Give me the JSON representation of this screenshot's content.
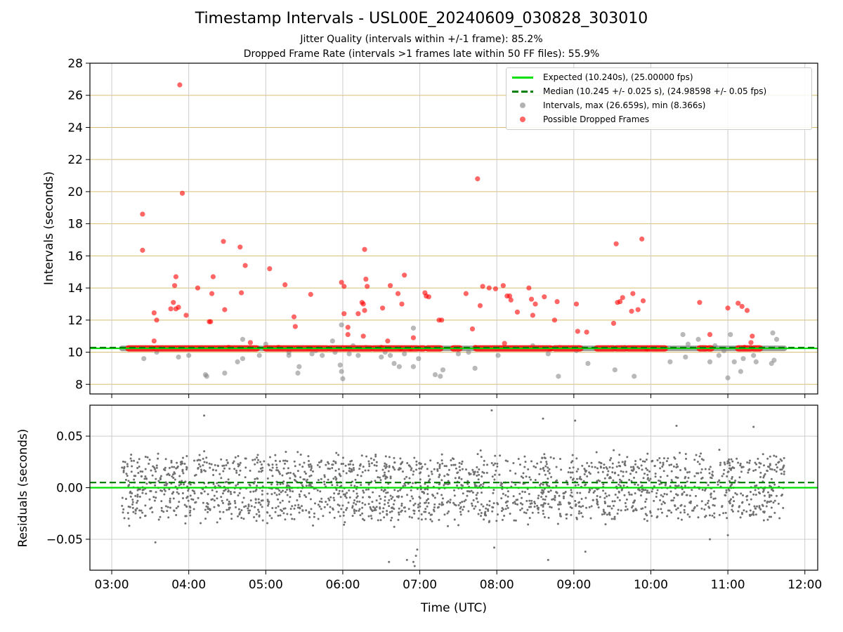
{
  "figure": {
    "title": "Timestamp Intervals - USL00E_20240609_030828_303010",
    "subtitle_1": "Jitter Quality (intervals within +/-1 frame): 85.2%",
    "subtitle_2": "Dropped Frame Rate (intervals >1 frames late within 50 FF files): 55.9%"
  },
  "colors": {
    "expected_line": "#00e000",
    "median_line": "#008000",
    "interval_points": "#909090",
    "dropped_points": "#ff2020",
    "top_grid": "#d8bf70",
    "vertical_grid": "#cccccc",
    "residual_points": "#707070"
  },
  "chart_data": [
    {
      "type": "scatter",
      "panel": "intervals",
      "xlabel": "",
      "ylabel": "Intervals (seconds)",
      "x_ticks": [
        "03:00",
        "04:00",
        "05:00",
        "06:00",
        "07:00",
        "08:00",
        "09:00",
        "10:00",
        "11:00",
        "12:00"
      ],
      "xlim": [
        "02:43",
        "12:10"
      ],
      "ylim": [
        7.4,
        28
      ],
      "y_ticks": [
        8,
        10,
        12,
        14,
        16,
        18,
        20,
        22,
        24,
        26,
        28
      ],
      "grid": "on",
      "legend": "top-right",
      "legend_entries": [
        "Expected (10.240s), (25.00000 fps)",
        "Median (10.245 +/- 0.025 s), (24.98598 +/- 0.05 fps)",
        "Intervals, max (26.659s), min (8.366s)",
        "Possible Dropped Frames"
      ],
      "expected_value": 10.24,
      "median_value": 10.245,
      "series": [
        {
          "name": "Intervals, max (26.659s), min (8.366s)",
          "band": {
            "x_start": "03:08",
            "x_end": "11:44",
            "y": 10.24
          },
          "points": [
            [
              "03:25",
              9.6
            ],
            [
              "03:35",
              10.0
            ],
            [
              "03:52",
              9.7
            ],
            [
              "04:00",
              9.8
            ],
            [
              "04:13",
              8.6
            ],
            [
              "04:14",
              8.5
            ],
            [
              "04:28",
              8.7
            ],
            [
              "04:38",
              9.4
            ],
            [
              "04:42",
              9.6
            ],
            [
              "04:47",
              10.2
            ],
            [
              "04:42",
              10.8
            ],
            [
              "04:55",
              9.8
            ],
            [
              "05:00",
              10.5
            ],
            [
              "05:18",
              9.8
            ],
            [
              "05:18",
              10.0
            ],
            [
              "05:25",
              8.7
            ],
            [
              "05:26",
              9.1
            ],
            [
              "05:36",
              9.9
            ],
            [
              "05:39",
              10.1
            ],
            [
              "05:44",
              9.8
            ],
            [
              "05:52",
              10.7
            ],
            [
              "05:54",
              10.0
            ],
            [
              "05:58",
              9.2
            ],
            [
              "05:59",
              11.7
            ],
            [
              "05:59",
              8.8
            ],
            [
              "06:00",
              8.35
            ],
            [
              "06:05",
              9.9
            ],
            [
              "06:08",
              10.4
            ],
            [
              "06:12",
              9.8
            ],
            [
              "06:18",
              10.3
            ],
            [
              "06:30",
              9.7
            ],
            [
              "06:33",
              10.0
            ],
            [
              "06:37",
              9.8
            ],
            [
              "06:40",
              9.3
            ],
            [
              "06:44",
              9.1
            ],
            [
              "06:48",
              9.9
            ],
            [
              "06:55",
              9.1
            ],
            [
              "06:55",
              11.5
            ],
            [
              "06:59",
              9.6
            ],
            [
              "07:12",
              8.6
            ],
            [
              "07:16",
              8.5
            ],
            [
              "07:18",
              8.9
            ],
            [
              "07:30",
              9.9
            ],
            [
              "07:38",
              10.0
            ],
            [
              "07:43",
              9.0
            ],
            [
              "07:47",
              10.2
            ],
            [
              "08:00",
              10.2
            ],
            [
              "08:01",
              9.8
            ],
            [
              "08:28",
              10.4
            ],
            [
              "08:40",
              9.9
            ],
            [
              "08:48",
              8.5
            ],
            [
              "08:49",
              10.3
            ],
            [
              "09:02",
              10.1
            ],
            [
              "09:11",
              9.3
            ],
            [
              "09:32",
              8.9
            ],
            [
              "09:40",
              10.3
            ],
            [
              "09:47",
              8.5
            ],
            [
              "10:05",
              10.2
            ],
            [
              "10:15",
              9.4
            ],
            [
              "10:25",
              11.1
            ],
            [
              "10:27",
              9.7
            ],
            [
              "10:29",
              10.5
            ],
            [
              "10:37",
              10.8
            ],
            [
              "10:42",
              10.2
            ],
            [
              "10:46",
              9.4
            ],
            [
              "10:50",
              10.4
            ],
            [
              "10:53",
              9.8
            ],
            [
              "10:57",
              10.1
            ],
            [
              "11:00",
              8.4
            ],
            [
              "11:02",
              11.1
            ],
            [
              "11:05",
              9.4
            ],
            [
              "11:10",
              8.8
            ],
            [
              "11:12",
              9.6
            ],
            [
              "11:20",
              9.8
            ],
            [
              "11:22",
              9.4
            ],
            [
              "11:34",
              9.3
            ],
            [
              "11:35",
              11.2
            ],
            [
              "11:36",
              9.5
            ],
            [
              "11:38",
              10.8
            ]
          ]
        },
        {
          "name": "Possible Dropped Frames",
          "band_segments": [
            [
              "03:13",
              "03:32"
            ],
            [
              "03:34",
              "04:53"
            ],
            [
              "05:00",
              "05:33"
            ],
            [
              "05:34",
              "05:48"
            ],
            [
              "05:50",
              "06:01"
            ],
            [
              "06:02",
              "06:22"
            ],
            [
              "06:24",
              "06:58"
            ],
            [
              "07:00",
              "07:03"
            ],
            [
              "07:06",
              "07:16"
            ],
            [
              "07:26",
              "07:31"
            ],
            [
              "07:44",
              "08:42"
            ],
            [
              "08:45",
              "09:05"
            ],
            [
              "09:18",
              "09:31"
            ],
            [
              "09:33",
              "09:40"
            ],
            [
              "09:42",
              "10:11"
            ],
            [
              "10:38",
              "10:43"
            ],
            [
              "10:45",
              "10:47"
            ],
            [
              "11:08",
              "11:18"
            ],
            [
              "11:20",
              "11:25"
            ]
          ],
          "band_y": 10.24,
          "points": [
            [
              "03:24",
              18.6
            ],
            [
              "03:24",
              16.35
            ],
            [
              "03:33",
              12.45
            ],
            [
              "03:35",
              12.0
            ],
            [
              "03:33",
              10.7
            ],
            [
              "03:46",
              12.7
            ],
            [
              "03:48",
              13.1
            ],
            [
              "03:49",
              14.15
            ],
            [
              "03:50",
              12.7
            ],
            [
              "03:50",
              14.7
            ],
            [
              "03:52",
              12.8
            ],
            [
              "03:53",
              26.65
            ],
            [
              "03:55",
              19.9
            ],
            [
              "03:58",
              12.3
            ],
            [
              "04:07",
              14.0
            ],
            [
              "04:16",
              11.9
            ],
            [
              "04:17",
              11.9
            ],
            [
              "04:18",
              13.65
            ],
            [
              "04:19",
              14.7
            ],
            [
              "04:27",
              16.9
            ],
            [
              "04:28",
              12.65
            ],
            [
              "04:31",
              10.3
            ],
            [
              "04:40",
              16.55
            ],
            [
              "04:41",
              13.7
            ],
            [
              "04:44",
              15.4
            ],
            [
              "04:48",
              10.6
            ],
            [
              "05:03",
              15.2
            ],
            [
              "05:10",
              10.3
            ],
            [
              "05:15",
              14.2
            ],
            [
              "05:22",
              12.2
            ],
            [
              "05:23",
              11.6
            ],
            [
              "05:35",
              13.6
            ],
            [
              "05:59",
              14.35
            ],
            [
              "06:01",
              12.4
            ],
            [
              "06:01",
              14.1
            ],
            [
              "06:04",
              11.1
            ],
            [
              "06:04",
              11.55
            ],
            [
              "06:12",
              12.4
            ],
            [
              "06:15",
              13.1
            ],
            [
              "06:16",
              13.0
            ],
            [
              "06:16",
              11.0
            ],
            [
              "06:17",
              12.6
            ],
            [
              "06:17",
              16.4
            ],
            [
              "06:18",
              14.55
            ],
            [
              "06:19",
              14.1
            ],
            [
              "06:30",
              10.3
            ],
            [
              "06:31",
              12.75
            ],
            [
              "06:35",
              10.7
            ],
            [
              "06:37",
              14.15
            ],
            [
              "06:43",
              13.65
            ],
            [
              "06:45",
              10.2
            ],
            [
              "06:46",
              13.0
            ],
            [
              "06:48",
              14.8
            ],
            [
              "06:53",
              10.2
            ],
            [
              "06:55",
              10.9
            ],
            [
              "07:04",
              13.7
            ],
            [
              "07:05",
              13.5
            ],
            [
              "07:07",
              13.45
            ],
            [
              "07:15",
              12.0
            ],
            [
              "07:17",
              12.0
            ],
            [
              "07:36",
              13.65
            ],
            [
              "07:41",
              11.45
            ],
            [
              "07:43",
              10.3
            ],
            [
              "07:45",
              20.8
            ],
            [
              "07:47",
              12.9
            ],
            [
              "07:49",
              14.1
            ],
            [
              "07:54",
              14.0
            ],
            [
              "07:59",
              13.95
            ],
            [
              "08:05",
              14.15
            ],
            [
              "08:06",
              10.55
            ],
            [
              "08:08",
              13.5
            ],
            [
              "08:10",
              13.5
            ],
            [
              "08:11",
              13.25
            ],
            [
              "08:16",
              12.5
            ],
            [
              "08:25",
              14.0
            ],
            [
              "08:27",
              13.3
            ],
            [
              "08:28",
              12.3
            ],
            [
              "08:30",
              13.0
            ],
            [
              "08:37",
              13.45
            ],
            [
              "08:42",
              10.2
            ],
            [
              "08:45",
              12.0
            ],
            [
              "08:47",
              13.15
            ],
            [
              "09:02",
              13.0
            ],
            [
              "09:03",
              11.3
            ],
            [
              "09:10",
              11.25
            ],
            [
              "09:31",
              11.8
            ],
            [
              "09:33",
              16.75
            ],
            [
              "09:34",
              13.1
            ],
            [
              "09:36",
              13.15
            ],
            [
              "09:38",
              13.4
            ],
            [
              "09:45",
              12.55
            ],
            [
              "09:46",
              13.65
            ],
            [
              "09:50",
              12.65
            ],
            [
              "09:53",
              17.05
            ],
            [
              "09:54",
              13.2
            ],
            [
              "09:57",
              10.2
            ],
            [
              "10:38",
              13.1
            ],
            [
              "10:46",
              11.1
            ],
            [
              "11:00",
              12.75
            ],
            [
              "11:08",
              13.05
            ],
            [
              "11:11",
              12.85
            ],
            [
              "11:13",
              10.3
            ],
            [
              "11:15",
              12.6
            ],
            [
              "11:19",
              11.0
            ],
            [
              "11:18",
              10.6
            ]
          ]
        }
      ]
    },
    {
      "type": "scatter",
      "panel": "residuals",
      "xlabel": "Time (UTC)",
      "ylabel": "Residuals (seconds)",
      "x_ticks": [
        "03:00",
        "04:00",
        "05:00",
        "06:00",
        "07:00",
        "08:00",
        "09:00",
        "10:00",
        "11:00",
        "12:00"
      ],
      "xlim": [
        "02:43",
        "12:10"
      ],
      "ylim": [
        -0.08,
        0.08
      ],
      "y_ticks": [
        -0.05,
        0.0,
        0.05
      ],
      "y_tick_labels": [
        "−0.05",
        "0.00",
        "0.05"
      ],
      "grid": "on",
      "expected_residual": 0.0,
      "median_residual": 0.005,
      "residual_distribution": {
        "x_start": "03:08",
        "x_end": "11:44",
        "count": 2100,
        "dominant_levels": [
          -0.02,
          0.0,
          0.02
        ],
        "spread": 0.012,
        "seed": 7
      },
      "outlier_points": [
        [
          "03:34",
          -0.053
        ],
        [
          "04:12",
          0.07
        ],
        [
          "06:36",
          -0.072
        ],
        [
          "06:50",
          -0.07
        ],
        [
          "06:55",
          -0.072
        ],
        [
          "06:56",
          -0.076
        ],
        [
          "06:57",
          -0.066
        ],
        [
          "06:58",
          -0.06
        ],
        [
          "07:56",
          0.075
        ],
        [
          "07:58",
          -0.058
        ],
        [
          "08:36",
          0.067
        ],
        [
          "08:40",
          -0.07
        ],
        [
          "09:01",
          0.065
        ],
        [
          "09:09",
          -0.062
        ],
        [
          "10:20",
          0.06
        ],
        [
          "10:46",
          -0.05
        ],
        [
          "11:00",
          -0.046
        ],
        [
          "11:20",
          0.059
        ],
        [
          "10:02",
          -0.08
        ]
      ]
    }
  ]
}
